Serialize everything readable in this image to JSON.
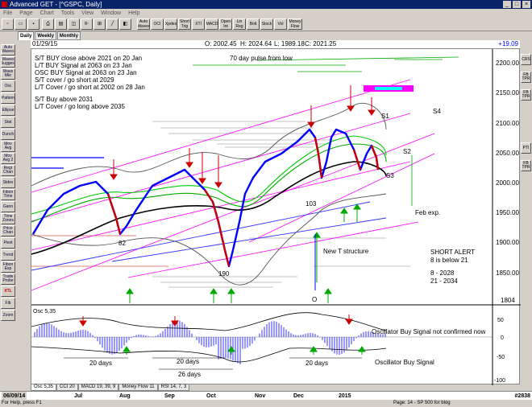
{
  "window": {
    "title": "Advanced GET - [^GSPC, Daily]",
    "buttons": [
      "_",
      "□",
      "×"
    ]
  },
  "menu": [
    "File",
    "Page",
    "Chart",
    "Tools",
    "View",
    "Window",
    "Help"
  ],
  "toolbar_buttons": [
    "Auto Waves",
    "OCI",
    "Xpdes",
    "Short Trig",
    "XTI",
    "MACD",
    "Open Int",
    "Lin Reg",
    "Bolt",
    "Stock",
    "Vol",
    "Money Flow"
  ],
  "left_toolbar": [
    "Auto Waves",
    "Waves Suggest",
    "Wave Mkr",
    "Osc",
    "Pattern",
    "Ellipse",
    "Stat",
    "Dunch",
    "Mov Avg",
    "Mov Avg 2",
    "Regr Chan",
    "Stdev",
    "Fibon Time",
    "Gann",
    "Time Zones",
    "Price Chan",
    "Pivot",
    "Trend",
    "Fibon Exp",
    "Trade Probe",
    "XTL",
    "Fib",
    "Zoom"
  ],
  "right_toolbar": [
    "CRS",
    "FB TPR",
    "FB TPR",
    "PTI",
    "FB TPR"
  ],
  "period_tabs": [
    "Daily",
    "Weekly",
    "Monthly"
  ],
  "infobar": {
    "date": "01/29/15",
    "open": "O: 2002.45",
    "high": "H: 2024.64",
    "low": "L: 1989.18",
    "close": "C: 2021.25",
    "change": "+19.09"
  },
  "annotations": {
    "notes": [
      "S/T BUY close above 2021 on 20 Jan",
      "L/T BUY Signal at 2063 on 23 Jan",
      "OSC BUY Signal at 2063 on 23 Jan",
      "S/T cover / go short at 2029",
      "L/T Cover / go short at 2002 on 28 Jan",
      "S/T Buy above 2031",
      "L/T Cover / go long above 2035"
    ],
    "pulse": "70 day pulse from low",
    "s1": "S1",
    "s2": "S2",
    "s3": "S3",
    "s4": "S4",
    "feb_exp": "Feb exp.",
    "short_alert": [
      "SHORT ALERT",
      "8 is below 21",
      "8   - 2028",
      "21 - 2034"
    ],
    "new_t": "New T structure",
    "wave_82": "82",
    "wave_103": "103",
    "wave_190": "190",
    "wave_o": "O"
  },
  "price_axis": [
    "2200.00",
    "2150.00",
    "2100.00",
    "2050.00",
    "2000.00",
    "1950.00",
    "1900.00",
    "1850.00",
    "1804"
  ],
  "oscillator": {
    "title": "Osc 5,35",
    "axis": [
      "50",
      "0",
      "-50",
      "-100"
    ],
    "labels": {
      "not_confirmed": "Oscillator Buy Signal not confirmed now",
      "buy_signal": "Oscillator Buy Signal",
      "d20a": "20 days",
      "d20b": "20 days",
      "d26": "26 days",
      "d20c": "20 days"
    }
  },
  "bottom_tabs": [
    "Osc 5,35",
    "CCI 20",
    "MACD 19, 39, 9",
    "Money Flow 11",
    "RSI 14, 7, 3"
  ],
  "date_axis": {
    "start": "06/09/14",
    "months": [
      "Jul",
      "Aug",
      "Sep",
      "Oct",
      "Nov",
      "Dec",
      "2015"
    ],
    "code": "#2838"
  },
  "status": {
    "left": "For Help, press F1",
    "right": "Page: 14 - SP 500 for blog"
  },
  "colors": {
    "title_bg": "#0a246a",
    "panel": "#d4d0c8",
    "up": "#0000ff",
    "down": "#cc0000",
    "ma": "#000000",
    "bands": "#00aa00",
    "trend": "#ff00ff"
  }
}
